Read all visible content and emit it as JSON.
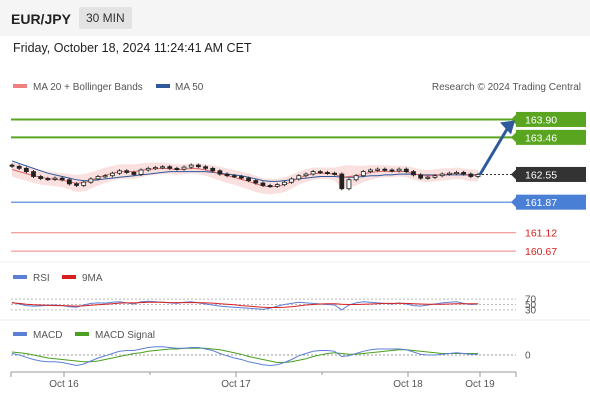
{
  "header": {
    "symbol": "EUR/JPY",
    "timeframe": "30 MIN",
    "datetime": "Friday, October 18, 2024 11:24:41 AM CET"
  },
  "colors": {
    "upper_levels": "#5aa520",
    "lower_levels": "#f08080",
    "pivot": "#4a7fd6",
    "arrow": "#2e5a9c",
    "price_box": "#333333",
    "bollinger": "#f7c6c6",
    "ma20": "#e06666",
    "ma50": "#2e5a9c",
    "rsi": "#5c7fd6",
    "rsi_ma": "#d62020",
    "macd": "#5c7fd6",
    "macd_signal": "#4aa020"
  },
  "chart_data": [
    {
      "type": "candlestick",
      "legend": {
        "ma20_bb": "MA 20 + Bollinger Bands",
        "ma50": "MA 50"
      },
      "watermark": "Research © 2024 Trading Central",
      "x_ticks": [
        "Oct 16",
        "Oct 17",
        "Oct 18",
        "Oct 19"
      ],
      "price_range": [
        160.5,
        164.5
      ],
      "levels": [
        {
          "value": 163.9,
          "label": "163.90",
          "kind": "resistance"
        },
        {
          "value": 163.46,
          "label": "163.46",
          "kind": "resistance"
        },
        {
          "value": 161.87,
          "label": "161.87",
          "kind": "pivot"
        },
        {
          "value": 161.12,
          "label": "161.12",
          "kind": "support"
        },
        {
          "value": 160.67,
          "label": "160.67",
          "kind": "support"
        }
      ],
      "last_price": {
        "value": 162.55,
        "label": "162.55"
      },
      "closes": [
        162.75,
        162.7,
        162.62,
        162.5,
        162.45,
        162.43,
        162.46,
        162.42,
        162.32,
        162.28,
        162.36,
        162.44,
        162.5,
        162.52,
        162.58,
        162.64,
        162.6,
        162.55,
        162.66,
        162.7,
        162.72,
        162.74,
        162.7,
        162.68,
        162.73,
        162.78,
        162.74,
        162.7,
        162.64,
        162.56,
        162.52,
        162.5,
        162.46,
        162.4,
        162.34,
        162.28,
        162.26,
        162.3,
        162.36,
        162.44,
        162.52,
        162.56,
        162.62,
        162.6,
        162.58,
        162.56,
        162.2,
        162.42,
        162.52,
        162.62,
        162.66,
        162.68,
        162.66,
        162.64,
        162.68,
        162.62,
        162.54,
        162.46,
        162.48,
        162.52,
        162.56,
        162.58,
        162.6,
        162.56,
        162.5,
        162.55
      ],
      "bb_upper": [
        162.85,
        162.8,
        162.74,
        162.7,
        162.66,
        162.62,
        162.6,
        162.58,
        162.56,
        162.54,
        162.56,
        162.6,
        162.66,
        162.72,
        162.76,
        162.8,
        162.8,
        162.8,
        162.82,
        162.84,
        162.84,
        162.84,
        162.82,
        162.8,
        162.8,
        162.82,
        162.82,
        162.8,
        162.78,
        162.74,
        162.7,
        162.66,
        162.62,
        162.58,
        162.52,
        162.46,
        162.44,
        162.44,
        162.48,
        162.54,
        162.62,
        162.68,
        162.72,
        162.72,
        162.72,
        162.72,
        162.76,
        162.78,
        162.76,
        162.76,
        162.78,
        162.78,
        162.78,
        162.76,
        162.76,
        162.76,
        162.72,
        162.68,
        162.66,
        162.68,
        162.7,
        162.7,
        162.72,
        162.7,
        162.68,
        162.66
      ],
      "bb_lower": [
        162.5,
        162.44,
        162.4,
        162.34,
        162.3,
        162.28,
        162.26,
        162.24,
        162.18,
        162.12,
        162.14,
        162.2,
        162.28,
        162.34,
        162.4,
        162.44,
        162.44,
        162.44,
        162.48,
        162.52,
        162.54,
        162.56,
        162.56,
        162.54,
        162.56,
        162.58,
        162.56,
        162.52,
        162.46,
        162.4,
        162.34,
        162.3,
        162.24,
        162.18,
        162.12,
        162.08,
        162.06,
        162.08,
        162.12,
        162.2,
        162.3,
        162.36,
        162.42,
        162.44,
        162.44,
        162.4,
        162.2,
        162.22,
        162.28,
        162.36,
        162.42,
        162.46,
        162.48,
        162.48,
        162.5,
        162.48,
        162.42,
        162.38,
        162.36,
        162.38,
        162.4,
        162.42,
        162.44,
        162.42,
        162.38,
        162.38
      ],
      "ma50": [
        162.88,
        162.82,
        162.76,
        162.7,
        162.64,
        162.58,
        162.54,
        162.5,
        162.46,
        162.42,
        162.4,
        162.4,
        162.42,
        162.44,
        162.46,
        162.48,
        162.5,
        162.52,
        162.54,
        162.56,
        162.58,
        162.6,
        162.62,
        162.62,
        162.62,
        162.62,
        162.62,
        162.62,
        162.6,
        162.58,
        162.56,
        162.54,
        162.52,
        162.48,
        162.44,
        162.4,
        162.38,
        162.38,
        162.4,
        162.42,
        162.44,
        162.46,
        162.48,
        162.5,
        162.5,
        162.5,
        162.48,
        162.48,
        162.48,
        162.5,
        162.52,
        162.52,
        162.54,
        162.54,
        162.56,
        162.56,
        162.56,
        162.54,
        162.54,
        162.54,
        162.54,
        162.54,
        162.54,
        162.54,
        162.54,
        162.54
      ]
    },
    {
      "type": "line",
      "legend": {
        "rsi": "RSI",
        "ma": "9MA"
      },
      "y_ticks": [
        "70",
        "50",
        "30"
      ],
      "y_range": [
        0,
        100
      ],
      "rsi": [
        58,
        52,
        46,
        44,
        45,
        47,
        48,
        46,
        42,
        40,
        48,
        54,
        56,
        55,
        58,
        60,
        56,
        52,
        60,
        62,
        60,
        58,
        56,
        54,
        58,
        60,
        56,
        52,
        48,
        44,
        42,
        40,
        38,
        36,
        34,
        32,
        36,
        44,
        50,
        54,
        58,
        56,
        54,
        52,
        50,
        48,
        30,
        48,
        56,
        60,
        58,
        56,
        54,
        52,
        56,
        52,
        46,
        44,
        48,
        52,
        56,
        58,
        60,
        54,
        50,
        52
      ],
      "rsi_ma": [
        56,
        54,
        51,
        49,
        48,
        47,
        46,
        46,
        45,
        44,
        45,
        47,
        49,
        51,
        53,
        55,
        56,
        56,
        57,
        58,
        58,
        58,
        57,
        57,
        57,
        57,
        57,
        56,
        55,
        53,
        51,
        49,
        46,
        44,
        42,
        40,
        39,
        39,
        40,
        42,
        45,
        48,
        50,
        52,
        53,
        53,
        51,
        50,
        50,
        51,
        52,
        53,
        54,
        54,
        54,
        54,
        53,
        52,
        51,
        51,
        51,
        52,
        53,
        53,
        53,
        53
      ]
    },
    {
      "type": "line",
      "legend": {
        "macd": "MACD",
        "signal": "MACD Signal"
      },
      "y_ticks": [
        "0"
      ],
      "y_range": [
        -0.2,
        0.2
      ],
      "macd": [
        0.02,
        0.0,
        -0.03,
        -0.06,
        -0.08,
        -0.09,
        -0.09,
        -0.1,
        -0.12,
        -0.14,
        -0.12,
        -0.08,
        -0.04,
        -0.01,
        0.02,
        0.05,
        0.06,
        0.06,
        0.08,
        0.1,
        0.11,
        0.11,
        0.1,
        0.09,
        0.09,
        0.1,
        0.1,
        0.08,
        0.06,
        0.02,
        -0.01,
        -0.04,
        -0.06,
        -0.09,
        -0.11,
        -0.13,
        -0.14,
        -0.13,
        -0.1,
        -0.06,
        -0.01,
        0.02,
        0.05,
        0.06,
        0.06,
        0.05,
        -0.02,
        -0.01,
        0.02,
        0.05,
        0.07,
        0.08,
        0.08,
        0.08,
        0.08,
        0.07,
        0.04,
        0.01,
        0.0,
        0.0,
        0.01,
        0.02,
        0.03,
        0.02,
        0.01,
        0.01
      ],
      "signal": [
        0.04,
        0.03,
        0.02,
        0.0,
        -0.02,
        -0.04,
        -0.05,
        -0.06,
        -0.07,
        -0.08,
        -0.09,
        -0.09,
        -0.08,
        -0.06,
        -0.04,
        -0.02,
        0.0,
        0.02,
        0.03,
        0.05,
        0.06,
        0.07,
        0.08,
        0.08,
        0.09,
        0.09,
        0.09,
        0.09,
        0.08,
        0.07,
        0.05,
        0.03,
        0.01,
        -0.02,
        -0.04,
        -0.06,
        -0.08,
        -0.1,
        -0.1,
        -0.09,
        -0.07,
        -0.05,
        -0.02,
        0.0,
        0.02,
        0.03,
        0.02,
        0.01,
        0.01,
        0.02,
        0.03,
        0.04,
        0.05,
        0.06,
        0.07,
        0.07,
        0.06,
        0.05,
        0.04,
        0.03,
        0.02,
        0.02,
        0.02,
        0.02,
        0.02,
        0.02
      ]
    }
  ]
}
